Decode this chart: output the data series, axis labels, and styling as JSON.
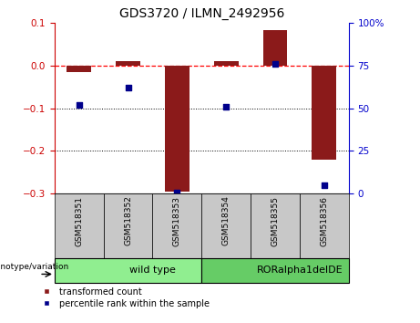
{
  "title": "GDS3720 / ILMN_2492956",
  "samples": [
    "GSM518351",
    "GSM518352",
    "GSM518353",
    "GSM518354",
    "GSM518355",
    "GSM518356"
  ],
  "red_values": [
    -0.015,
    0.01,
    -0.295,
    0.01,
    0.083,
    -0.22
  ],
  "blue_values": [
    52,
    62,
    1,
    51,
    76,
    5
  ],
  "ylim_left": [
    -0.3,
    0.1
  ],
  "ylim_right": [
    0,
    100
  ],
  "yticks_left": [
    -0.3,
    -0.2,
    -0.1,
    0.0,
    0.1
  ],
  "yticks_right": [
    0,
    25,
    50,
    75,
    100
  ],
  "ytick_labels_right": [
    "0",
    "25",
    "50",
    "75",
    "100%"
  ],
  "hline_y": 0.0,
  "dotted_lines": [
    -0.1,
    -0.2
  ],
  "groups": [
    {
      "label": "wild type",
      "start": 0,
      "end": 3,
      "color": "#90EE90"
    },
    {
      "label": "RORalpha1delDE",
      "start": 3,
      "end": 6,
      "color": "#66CC66"
    }
  ],
  "bar_color": "#8B1A1A",
  "dot_color": "#00008B",
  "legend_red_label": "transformed count",
  "legend_blue_label": "percentile rank within the sample",
  "genotype_label": "genotype/variation",
  "bar_width": 0.5,
  "tick_color_left": "#CC0000",
  "tick_color_right": "#0000CC",
  "group_tick_bg": "#C8C8C8"
}
